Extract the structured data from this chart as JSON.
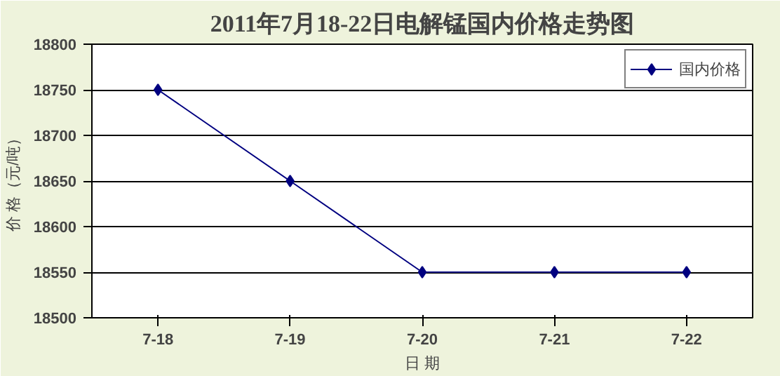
{
  "chart_data": {
    "type": "line",
    "title": "2011年7月18-22日电解锰国内价格走势图",
    "xlabel": "日 期",
    "ylabel": "价 格（元/吨）",
    "categories": [
      "7-18",
      "7-19",
      "7-20",
      "7-21",
      "7-22"
    ],
    "series": [
      {
        "name": "国内价格",
        "color": "#000080",
        "values": [
          18750,
          18650,
          18550,
          18550,
          18550
        ]
      }
    ],
    "ylim": [
      18500,
      18800
    ],
    "yticks": [
      18500,
      18550,
      18600,
      18650,
      18700,
      18750,
      18800
    ],
    "grid": "y",
    "legend": "top right",
    "marker": "diamond",
    "line_style": "solid"
  }
}
